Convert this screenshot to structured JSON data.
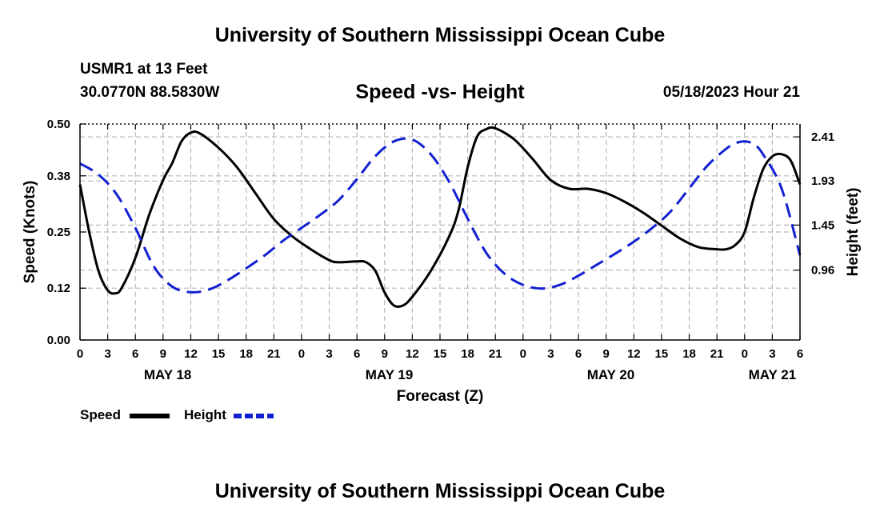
{
  "header": {
    "title": "University of Southern Mississippi Ocean Cube",
    "station": "USMR1 at 13 Feet",
    "coordinates": "30.0770N  88.5830W",
    "subtitle": "Speed -vs- Height",
    "datetime": "05/18/2023 Hour 21"
  },
  "footer": {
    "title": "University of Southern Mississippi Ocean Cube"
  },
  "chart_data": {
    "type": "line",
    "title": "Speed -vs- Height",
    "xlabel": "Forecast (Z)",
    "ylabel": "Speed (Knots)",
    "y2label": "Height (feet)",
    "x_range_hours": [
      0,
      78
    ],
    "x_tick_step_hours": 3,
    "x_tick_labels": [
      "0",
      "3",
      "6",
      "9",
      "12",
      "15",
      "18",
      "21",
      "0",
      "3",
      "6",
      "9",
      "12",
      "15",
      "18",
      "21",
      "0",
      "3",
      "6",
      "9",
      "12",
      "15",
      "18",
      "21",
      "0",
      "3",
      "6"
    ],
    "day_labels": [
      {
        "label": "MAY 18",
        "hour": 9.5
      },
      {
        "label": "MAY 19",
        "hour": 33.5
      },
      {
        "label": "MAY 20",
        "hour": 57.5
      },
      {
        "label": "MAY 21",
        "hour": 75
      }
    ],
    "ylim": [
      0,
      0.5
    ],
    "y_ticks": [
      0.0,
      0.12,
      0.25,
      0.38,
      0.5
    ],
    "y_tick_labels": [
      "0.00",
      "0.12",
      "0.25",
      "0.38",
      "0.50"
    ],
    "y2lim": [
      0.2,
      2.55
    ],
    "y2_ticks": [
      0.96,
      1.45,
      1.93,
      2.41
    ],
    "y2_tick_labels": [
      "0.96",
      "1.45",
      "1.93",
      "2.41"
    ],
    "grid": true,
    "series": [
      {
        "name": "Speed",
        "axis": "left",
        "color": "#000000",
        "dash": "solid",
        "points": [
          [
            0,
            0.36
          ],
          [
            1,
            0.25
          ],
          [
            2,
            0.16
          ],
          [
            3,
            0.115
          ],
          [
            3.8,
            0.108
          ],
          [
            4.5,
            0.12
          ],
          [
            6,
            0.19
          ],
          [
            7.5,
            0.29
          ],
          [
            9,
            0.37
          ],
          [
            10,
            0.41
          ],
          [
            11,
            0.46
          ],
          [
            12,
            0.48
          ],
          [
            13,
            0.478
          ],
          [
            15,
            0.445
          ],
          [
            17,
            0.4
          ],
          [
            19,
            0.34
          ],
          [
            21,
            0.28
          ],
          [
            23,
            0.24
          ],
          [
            25,
            0.21
          ],
          [
            27,
            0.185
          ],
          [
            28,
            0.18
          ],
          [
            30,
            0.182
          ],
          [
            31,
            0.18
          ],
          [
            32,
            0.16
          ],
          [
            33,
            0.11
          ],
          [
            34,
            0.08
          ],
          [
            35,
            0.08
          ],
          [
            36,
            0.1
          ],
          [
            38,
            0.16
          ],
          [
            40,
            0.24
          ],
          [
            41,
            0.3
          ],
          [
            42,
            0.4
          ],
          [
            43,
            0.47
          ],
          [
            44,
            0.488
          ],
          [
            45,
            0.49
          ],
          [
            47,
            0.465
          ],
          [
            49,
            0.42
          ],
          [
            51,
            0.37
          ],
          [
            53,
            0.35
          ],
          [
            55,
            0.35
          ],
          [
            57,
            0.34
          ],
          [
            59,
            0.32
          ],
          [
            61,
            0.295
          ],
          [
            63,
            0.265
          ],
          [
            65,
            0.235
          ],
          [
            67,
            0.215
          ],
          [
            69,
            0.21
          ],
          [
            70,
            0.21
          ],
          [
            71,
            0.22
          ],
          [
            72,
            0.25
          ],
          [
            73,
            0.33
          ],
          [
            74,
            0.395
          ],
          [
            75,
            0.425
          ],
          [
            76,
            0.43
          ],
          [
            77,
            0.415
          ],
          [
            78,
            0.36
          ]
        ]
      },
      {
        "name": "Height",
        "axis": "right",
        "color": "#1020d0",
        "dash": "dashed",
        "points": [
          [
            0,
            2.12
          ],
          [
            2,
            2.0
          ],
          [
            4,
            1.78
          ],
          [
            6,
            1.42
          ],
          [
            8,
            1.0
          ],
          [
            10,
            0.78
          ],
          [
            12,
            0.72
          ],
          [
            14,
            0.75
          ],
          [
            16,
            0.85
          ],
          [
            18,
            0.98
          ],
          [
            20,
            1.12
          ],
          [
            22,
            1.28
          ],
          [
            24,
            1.42
          ],
          [
            26,
            1.56
          ],
          [
            28,
            1.72
          ],
          [
            30,
            1.95
          ],
          [
            32,
            2.2
          ],
          [
            34,
            2.36
          ],
          [
            36,
            2.38
          ],
          [
            38,
            2.22
          ],
          [
            40,
            1.92
          ],
          [
            42,
            1.52
          ],
          [
            44,
            1.15
          ],
          [
            46,
            0.92
          ],
          [
            48,
            0.8
          ],
          [
            50,
            0.76
          ],
          [
            52,
            0.8
          ],
          [
            54,
            0.9
          ],
          [
            56,
            1.02
          ],
          [
            58,
            1.14
          ],
          [
            60,
            1.27
          ],
          [
            62,
            1.42
          ],
          [
            64,
            1.6
          ],
          [
            66,
            1.85
          ],
          [
            68,
            2.1
          ],
          [
            70,
            2.28
          ],
          [
            71,
            2.34
          ],
          [
            72,
            2.36
          ],
          [
            73,
            2.33
          ],
          [
            74,
            2.22
          ],
          [
            76,
            1.85
          ],
          [
            78,
            1.12
          ]
        ]
      }
    ],
    "legend": [
      {
        "label": "Speed",
        "color": "#000000",
        "dash": "solid"
      },
      {
        "label": "Height",
        "color": "#1020d0",
        "dash": "dashed"
      }
    ],
    "legend_position": "bottom-left"
  }
}
